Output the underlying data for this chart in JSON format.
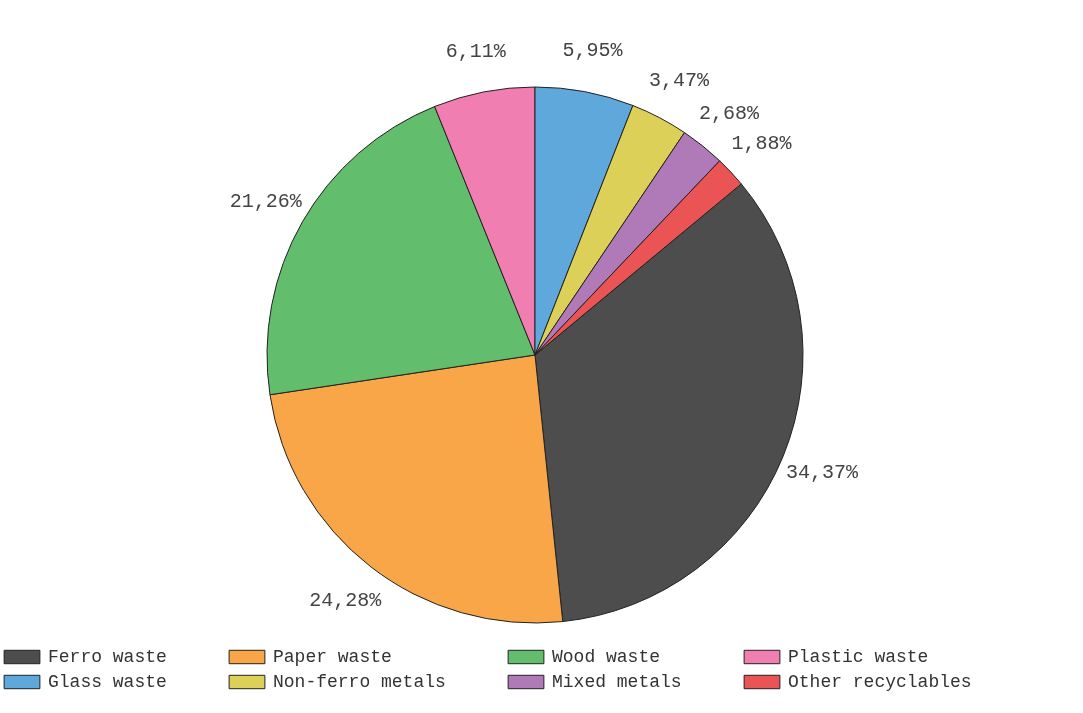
{
  "chart_data": {
    "type": "pie",
    "categories": [
      "Ferro waste",
      "Paper waste",
      "Wood waste",
      "Plastic waste",
      "Glass waste",
      "Non-ferro metals",
      "Mixed metals",
      "Other recyclables"
    ],
    "values": [
      34.37,
      24.28,
      21.26,
      6.11,
      5.95,
      3.47,
      2.68,
      1.88
    ],
    "colors": [
      "#4d4d4d",
      "#f8a647",
      "#62bd6c",
      "#f07eb0",
      "#5ea8dc",
      "#ddd058",
      "#b07ab8",
      "#eb5454"
    ],
    "value_labels": [
      "34,37%",
      "24,28%",
      "21,26%",
      "6,11%",
      "5,95%",
      "3,47%",
      "2,68%",
      "1,88%"
    ],
    "legend": "bottom"
  }
}
